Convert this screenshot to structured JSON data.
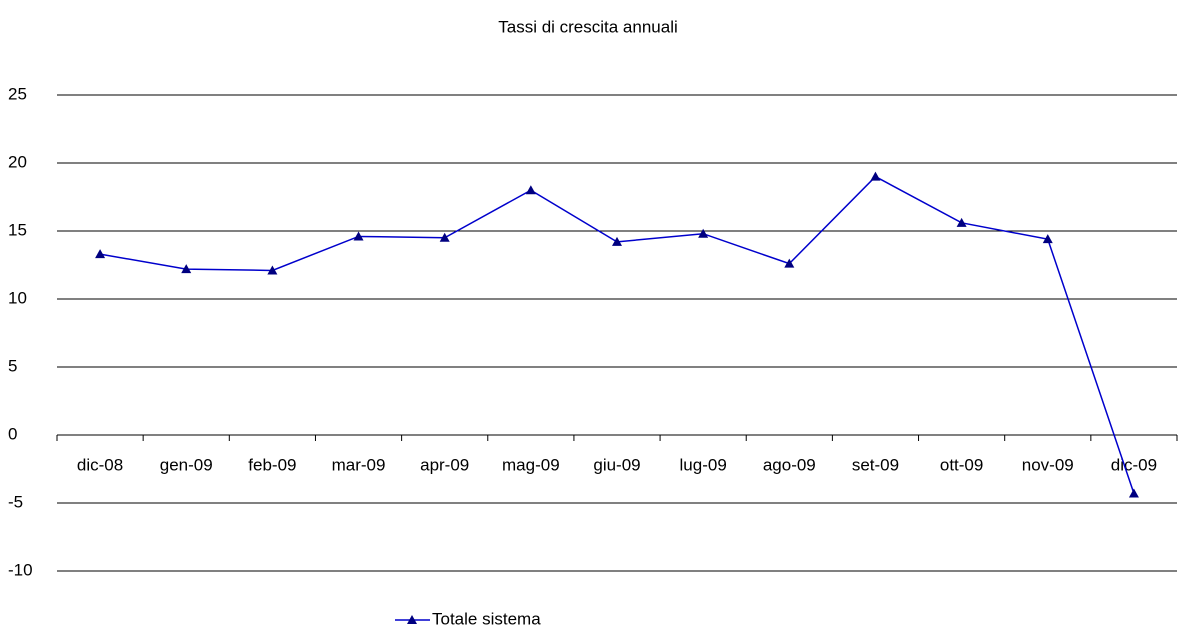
{
  "chart_data": {
    "type": "line",
    "title": "Tassi di crescita annuali",
    "categories": [
      "dic-08",
      "gen-09",
      "feb-09",
      "mar-09",
      "apr-09",
      "mag-09",
      "giu-09",
      "lug-09",
      "ago-09",
      "set-09",
      "ott-09",
      "nov-09",
      "dic-09"
    ],
    "series": [
      {
        "name": "Totale sistema",
        "color": "#0000cc",
        "marker_color": "#000080",
        "values": [
          13.3,
          12.2,
          12.1,
          14.6,
          14.5,
          18.0,
          14.2,
          14.8,
          12.6,
          19.0,
          15.6,
          14.4,
          -4.3
        ]
      }
    ],
    "ylim": [
      -10,
      25
    ],
    "yticks": [
      -10,
      -5,
      0,
      5,
      10,
      15,
      20,
      25
    ],
    "grid": true,
    "legend": "bottom"
  }
}
